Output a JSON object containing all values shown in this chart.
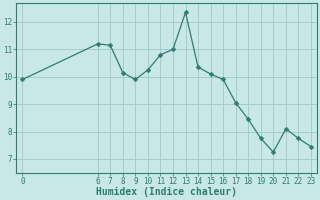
{
  "x": [
    0,
    6,
    7,
    8,
    9,
    10,
    11,
    12,
    13,
    14,
    15,
    16,
    17,
    18,
    19,
    20,
    21,
    22,
    23
  ],
  "y": [
    9.9,
    11.2,
    11.15,
    10.15,
    9.9,
    10.25,
    10.8,
    11.0,
    12.35,
    10.35,
    10.1,
    9.9,
    9.05,
    8.45,
    7.75,
    7.25,
    8.1,
    7.75,
    7.45
  ],
  "line_color": "#2e7d6e",
  "marker": "D",
  "marker_size": 2.5,
  "bg_color": "#c8e8e8",
  "grid_color": "#a0c8c8",
  "xlabel": "Humidex (Indice chaleur)",
  "xlim": [
    -0.5,
    23.5
  ],
  "ylim": [
    6.5,
    12.7
  ],
  "xticks": [
    0,
    6,
    7,
    8,
    9,
    10,
    11,
    12,
    13,
    14,
    15,
    16,
    17,
    18,
    19,
    20,
    21,
    22,
    23
  ],
  "yticks": [
    7,
    8,
    9,
    10,
    11,
    12
  ],
  "axis_color": "#2e7d6e",
  "tick_color": "#2e7d6e",
  "label_fontsize": 7,
  "tick_fontsize": 5.5,
  "linewidth": 0.9
}
